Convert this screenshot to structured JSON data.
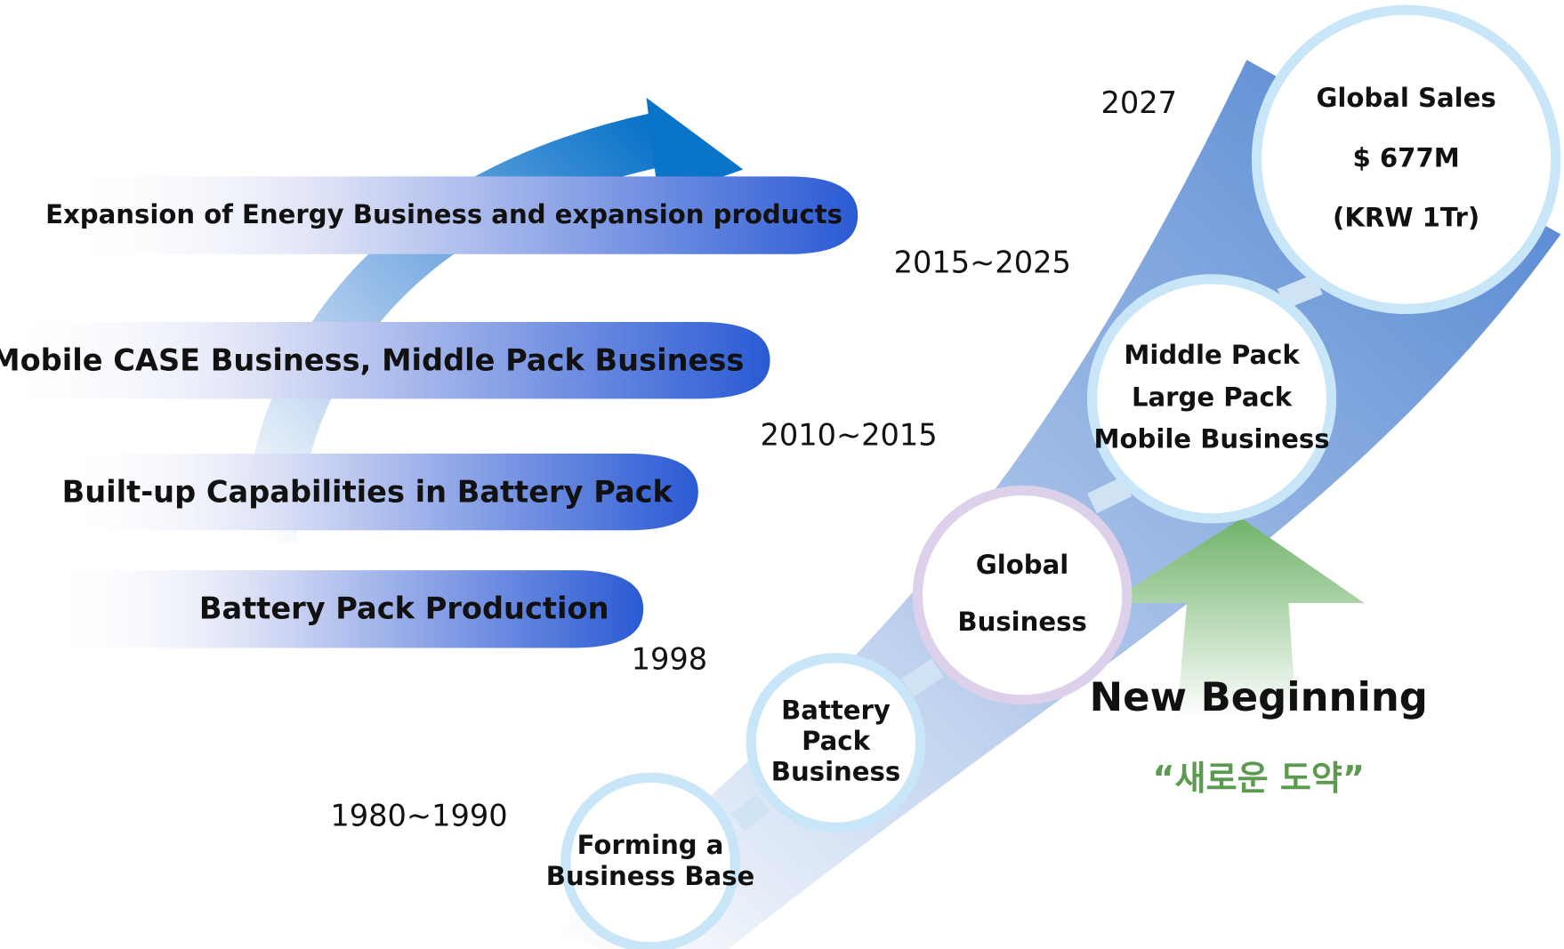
{
  "banners": [
    "Expansion of Energy Business and expansion products",
    "Mobile CASE Business, Middle Pack Business",
    "Built-up Capabilities in Battery Pack",
    "Battery Pack Production"
  ],
  "years": [
    "2027",
    "2015~2025",
    "2010~2015",
    "1998",
    "1980~1990"
  ],
  "circles": [
    {
      "lines": [
        "Forming a",
        "Business Base"
      ]
    },
    {
      "lines": [
        "Battery",
        "Pack",
        "Business"
      ]
    },
    {
      "lines": [
        "Global",
        "Business"
      ]
    },
    {
      "lines": [
        "Middle Pack",
        "Large Pack",
        "Mobile Business"
      ]
    },
    {
      "lines": [
        "Global Sales",
        "$ 677M",
        "(KRW 1Tr)"
      ]
    }
  ],
  "new_beginning": {
    "title": "New Beginning",
    "subtitle": "“새로운 도약”"
  }
}
